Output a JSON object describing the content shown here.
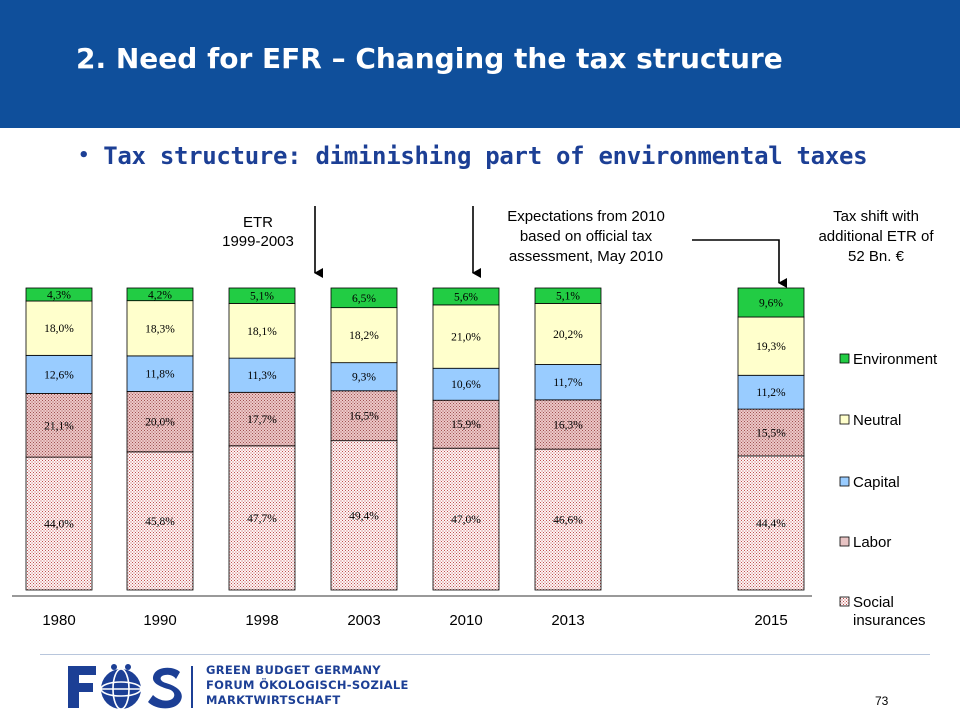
{
  "slide": {
    "title": "2. Need for EFR – Changing the tax structure",
    "bullet": "Tax structure: diminishing part of environmental taxes",
    "page_number": "73"
  },
  "annotations": {
    "etr_lines": [
      "ETR",
      "1999-2003"
    ],
    "expectation_lines": [
      "Expectations from 2010",
      "based on official tax",
      "assessment, May 2010"
    ],
    "taxshift_lines": [
      "Tax shift with",
      "additional ETR of",
      "52 Bn. €"
    ]
  },
  "logo": {
    "mark": "FÖS",
    "lines": [
      "GREEN BUDGET GERMANY",
      "FORUM ÖKOLOGISCH-SOZIALE",
      "MARKTWIRTSCHAFT"
    ]
  },
  "colors": {
    "header_bg": "#0f4f9b",
    "environment": "#22cc44",
    "neutral": "#ffffcc",
    "capital": "#99ccff",
    "labor": "#e8c4c4",
    "social": "#f8eeee"
  },
  "chart_data": {
    "type": "bar",
    "stacked": true,
    "categories": [
      "1980",
      "1990",
      "1998",
      "2003",
      "2010",
      "2013",
      "2015"
    ],
    "series": [
      {
        "name": "Social insurances",
        "values": [
          44.0,
          45.8,
          47.7,
          49.4,
          47.0,
          46.6,
          44.4
        ],
        "labels": [
          "44,0%",
          "45,8%",
          "47,7%",
          "49,4%",
          "47,0%",
          "46,6%",
          "44,4%"
        ]
      },
      {
        "name": "Labor",
        "values": [
          21.1,
          20.0,
          17.7,
          16.5,
          15.9,
          16.3,
          15.5
        ],
        "labels": [
          "21,1%",
          "20,0%",
          "17,7%",
          "16,5%",
          "15,9%",
          "16,3%",
          "15,5%"
        ]
      },
      {
        "name": "Capital",
        "values": [
          12.6,
          11.8,
          11.3,
          9.3,
          10.6,
          11.7,
          11.2
        ],
        "labels": [
          "12,6%",
          "11,8%",
          "11,3%",
          "9,3%",
          "10,6%",
          "11,7%",
          "11,2%"
        ]
      },
      {
        "name": "Neutral",
        "values": [
          18.0,
          18.3,
          18.1,
          18.2,
          21.0,
          20.2,
          19.3
        ],
        "labels": [
          "18,0%",
          "18,3%",
          "18,1%",
          "18,2%",
          "21,0%",
          "20,2%",
          "19,3%"
        ]
      },
      {
        "name": "Environment",
        "values": [
          4.3,
          4.2,
          5.1,
          6.5,
          5.6,
          5.1,
          9.6
        ],
        "labels": [
          "4,3%",
          "4,2%",
          "5,1%",
          "6,5%",
          "5,6%",
          "5,1%",
          "9,6%"
        ]
      }
    ],
    "legend": [
      "Environment",
      "Neutral",
      "Capital",
      "Labor",
      "Social insurances"
    ],
    "legend_position": "right",
    "xlabel": "",
    "ylabel": "",
    "ylim": [
      0,
      100
    ],
    "grid": false
  }
}
